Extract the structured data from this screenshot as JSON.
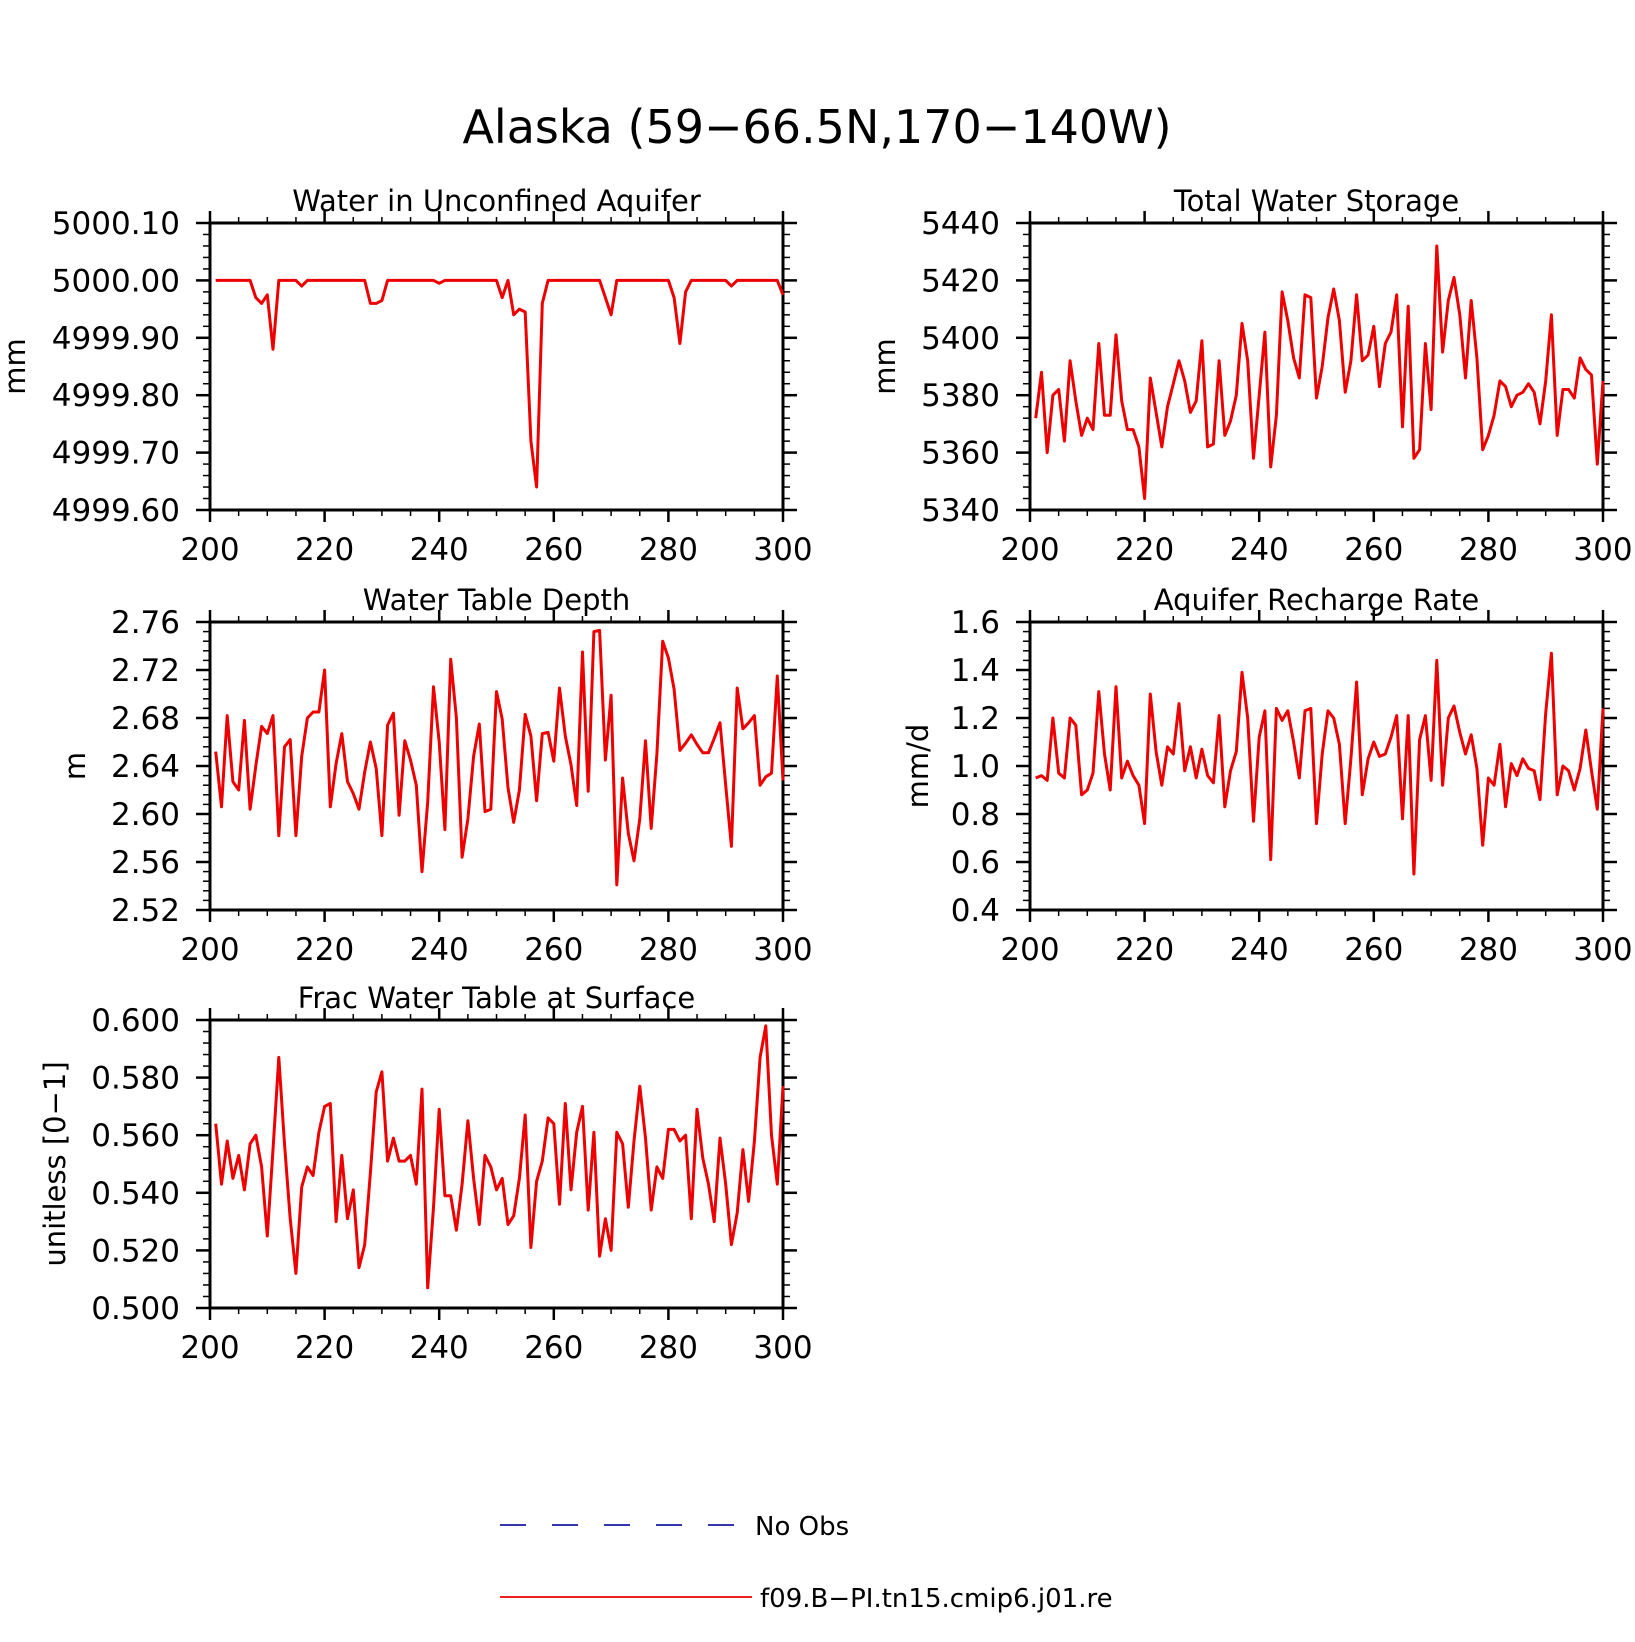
{
  "main_title": "Alaska (59−66.5N,170−140W)",
  "series_color": "#ee0000",
  "obs_color": "#1a1aa6",
  "legend": {
    "obs_label": "No Obs",
    "model_label": "f09.B−PI.tn15.cmip6.j01.re"
  },
  "chart_data": [
    {
      "type": "line",
      "title": "Water in Unconfined Aquifer",
      "ylabel": "mm",
      "xlim": [
        200,
        300
      ],
      "ylim": [
        4999.6,
        5000.1
      ],
      "xticks": [
        "200",
        "220",
        "240",
        "260",
        "280",
        "300"
      ],
      "yticks": [
        "4999.60",
        "4999.70",
        "4999.80",
        "4999.90",
        "5000.00",
        "5000.10"
      ],
      "x_start": 201,
      "values": [
        5000.0,
        5000.0,
        5000.0,
        5000.0,
        5000.0,
        5000.0,
        5000.0,
        4999.97,
        4999.96,
        4999.975,
        4999.88,
        5000.0,
        5000.0,
        5000.0,
        5000.0,
        4999.99,
        5000.0,
        5000.0,
        5000.0,
        5000.0,
        5000.0,
        5000.0,
        5000.0,
        5000.0,
        5000.0,
        5000.0,
        5000.0,
        4999.96,
        4999.96,
        4999.965,
        5000.0,
        5000.0,
        5000.0,
        5000.0,
        5000.0,
        5000.0,
        5000.0,
        5000.0,
        5000.0,
        4999.995,
        5000.0,
        5000.0,
        5000.0,
        5000.0,
        5000.0,
        5000.0,
        5000.0,
        5000.0,
        5000.0,
        5000.0,
        4999.97,
        5000.0,
        4999.94,
        4999.95,
        4999.945,
        4999.72,
        4999.64,
        4999.96,
        5000.0,
        5000.0,
        5000.0,
        5000.0,
        5000.0,
        5000.0,
        5000.0,
        5000.0,
        5000.0,
        5000.0,
        4999.97,
        4999.94,
        5000.0,
        5000.0,
        5000.0,
        5000.0,
        5000.0,
        5000.0,
        5000.0,
        5000.0,
        5000.0,
        5000.0,
        4999.97,
        4999.89,
        4999.98,
        5000.0,
        5000.0,
        5000.0,
        5000.0,
        5000.0,
        5000.0,
        5000.0,
        4999.99,
        5000.0,
        5000.0,
        5000.0,
        5000.0,
        5000.0,
        5000.0,
        5000.0,
        5000.0,
        4999.975
      ]
    },
    {
      "type": "line",
      "title": "Total Water Storage",
      "ylabel": "mm",
      "xlim": [
        200,
        300
      ],
      "ylim": [
        5340,
        5440
      ],
      "xticks": [
        "200",
        "220",
        "240",
        "260",
        "280",
        "300"
      ],
      "yticks": [
        "5340",
        "5360",
        "5380",
        "5400",
        "5420",
        "5440"
      ],
      "x_start": 201,
      "values": [
        5372,
        5388,
        5360,
        5380,
        5382,
        5364,
        5392,
        5378,
        5366,
        5372,
        5368,
        5398,
        5373,
        5373,
        5401,
        5378,
        5368,
        5368,
        5362,
        5344,
        5386,
        5374,
        5362,
        5376,
        5384,
        5392,
        5385,
        5374,
        5378,
        5399,
        5362,
        5363,
        5392,
        5366,
        5371,
        5380,
        5405,
        5392,
        5358,
        5380,
        5402,
        5355,
        5373,
        5416,
        5406,
        5393,
        5386,
        5415,
        5414,
        5379,
        5390,
        5407,
        5417,
        5406,
        5381,
        5392,
        5415,
        5392,
        5394,
        5404,
        5383,
        5398,
        5402,
        5415,
        5369,
        5411,
        5358,
        5361,
        5398,
        5375,
        5432,
        5395,
        5413,
        5421,
        5408,
        5386,
        5413,
        5393,
        5361,
        5366,
        5373,
        5385,
        5383,
        5376,
        5380,
        5381,
        5384,
        5381,
        5370,
        5385,
        5408,
        5366,
        5382,
        5382,
        5379,
        5393,
        5389,
        5387,
        5356,
        5385
      ]
    },
    {
      "type": "line",
      "title": "Water Table Depth",
      "ylabel": "m",
      "xlim": [
        200,
        300
      ],
      "ylim": [
        2.52,
        2.76
      ],
      "xticks": [
        "200",
        "220",
        "240",
        "260",
        "280",
        "300"
      ],
      "yticks": [
        "2.52",
        "2.56",
        "2.60",
        "2.64",
        "2.68",
        "2.72",
        "2.76"
      ],
      "x_start": 201,
      "values": [
        2.652,
        2.606,
        2.682,
        2.627,
        2.62,
        2.678,
        2.604,
        2.64,
        2.673,
        2.667,
        2.682,
        2.582,
        2.656,
        2.662,
        2.582,
        2.648,
        2.68,
        2.685,
        2.685,
        2.72,
        2.606,
        2.642,
        2.667,
        2.627,
        2.617,
        2.604,
        2.635,
        2.66,
        2.638,
        2.582,
        2.674,
        2.684,
        2.599,
        2.661,
        2.645,
        2.624,
        2.552,
        2.61,
        2.706,
        2.66,
        2.587,
        2.729,
        2.68,
        2.564,
        2.596,
        2.648,
        2.675,
        2.602,
        2.604,
        2.702,
        2.679,
        2.622,
        2.593,
        2.62,
        2.683,
        2.665,
        2.611,
        2.667,
        2.668,
        2.644,
        2.705,
        2.665,
        2.641,
        2.607,
        2.735,
        2.619,
        2.752,
        2.753,
        2.645,
        2.699,
        2.541,
        2.63,
        2.584,
        2.561,
        2.596,
        2.661,
        2.588,
        2.65,
        2.744,
        2.73,
        2.704,
        2.653,
        2.659,
        2.666,
        2.658,
        2.651,
        2.651,
        2.663,
        2.676,
        2.624,
        2.573,
        2.705,
        2.671,
        2.676,
        2.682,
        2.624,
        2.631,
        2.634,
        2.715,
        2.628
      ]
    },
    {
      "type": "line",
      "title": "Aquifer Recharge Rate",
      "ylabel": "mm/d",
      "xlim": [
        200,
        300
      ],
      "ylim": [
        0.4,
        1.6
      ],
      "xticks": [
        "200",
        "220",
        "240",
        "260",
        "280",
        "300"
      ],
      "yticks": [
        "0.4",
        "0.6",
        "0.8",
        "1.0",
        "1.2",
        "1.4",
        "1.6"
      ],
      "x_start": 201,
      "values": [
        0.95,
        0.96,
        0.94,
        1.2,
        0.97,
        0.95,
        1.2,
        1.17,
        0.88,
        0.9,
        0.97,
        1.31,
        1.05,
        0.9,
        1.33,
        0.95,
        1.02,
        0.96,
        0.92,
        0.76,
        1.3,
        1.06,
        0.92,
        1.08,
        1.05,
        1.26,
        0.98,
        1.08,
        0.95,
        1.07,
        0.96,
        0.93,
        1.21,
        0.83,
        0.98,
        1.06,
        1.39,
        1.2,
        0.77,
        1.12,
        1.23,
        0.61,
        1.24,
        1.19,
        1.23,
        1.1,
        0.95,
        1.23,
        1.24,
        0.76,
        1.05,
        1.23,
        1.2,
        1.09,
        0.76,
        1.03,
        1.35,
        0.88,
        1.03,
        1.1,
        1.04,
        1.05,
        1.12,
        1.21,
        0.78,
        1.21,
        0.55,
        1.11,
        1.21,
        0.94,
        1.44,
        0.92,
        1.2,
        1.25,
        1.14,
        1.05,
        1.13,
        0.99,
        0.67,
        0.95,
        0.92,
        1.09,
        0.83,
        1.01,
        0.96,
        1.03,
        0.99,
        0.98,
        0.86,
        1.22,
        1.47,
        0.88,
        1.0,
        0.98,
        0.9,
        0.99,
        1.15,
        0.98,
        0.82,
        1.24
      ]
    },
    {
      "type": "line",
      "title": "Frac Water Table at Surface",
      "ylabel": "unitless [0−1]",
      "xlim": [
        200,
        300
      ],
      "ylim": [
        0.5,
        0.6
      ],
      "xticks": [
        "200",
        "220",
        "240",
        "260",
        "280",
        "300"
      ],
      "yticks": [
        "0.500",
        "0.520",
        "0.540",
        "0.560",
        "0.580",
        "0.600"
      ],
      "x_start": 201,
      "values": [
        0.564,
        0.543,
        0.558,
        0.545,
        0.553,
        0.541,
        0.557,
        0.56,
        0.549,
        0.525,
        0.555,
        0.587,
        0.557,
        0.531,
        0.512,
        0.542,
        0.549,
        0.546,
        0.561,
        0.57,
        0.571,
        0.53,
        0.553,
        0.531,
        0.541,
        0.514,
        0.522,
        0.547,
        0.575,
        0.582,
        0.551,
        0.559,
        0.551,
        0.551,
        0.553,
        0.543,
        0.576,
        0.507,
        0.535,
        0.569,
        0.539,
        0.539,
        0.527,
        0.543,
        0.565,
        0.545,
        0.529,
        0.553,
        0.549,
        0.541,
        0.545,
        0.529,
        0.532,
        0.545,
        0.567,
        0.521,
        0.544,
        0.551,
        0.566,
        0.564,
        0.536,
        0.571,
        0.541,
        0.561,
        0.57,
        0.534,
        0.561,
        0.518,
        0.531,
        0.52,
        0.561,
        0.557,
        0.535,
        0.558,
        0.577,
        0.559,
        0.534,
        0.549,
        0.545,
        0.562,
        0.562,
        0.558,
        0.56,
        0.531,
        0.569,
        0.552,
        0.543,
        0.53,
        0.559,
        0.543,
        0.522,
        0.533,
        0.555,
        0.537,
        0.558,
        0.587,
        0.598,
        0.56,
        0.543,
        0.577
      ]
    }
  ]
}
